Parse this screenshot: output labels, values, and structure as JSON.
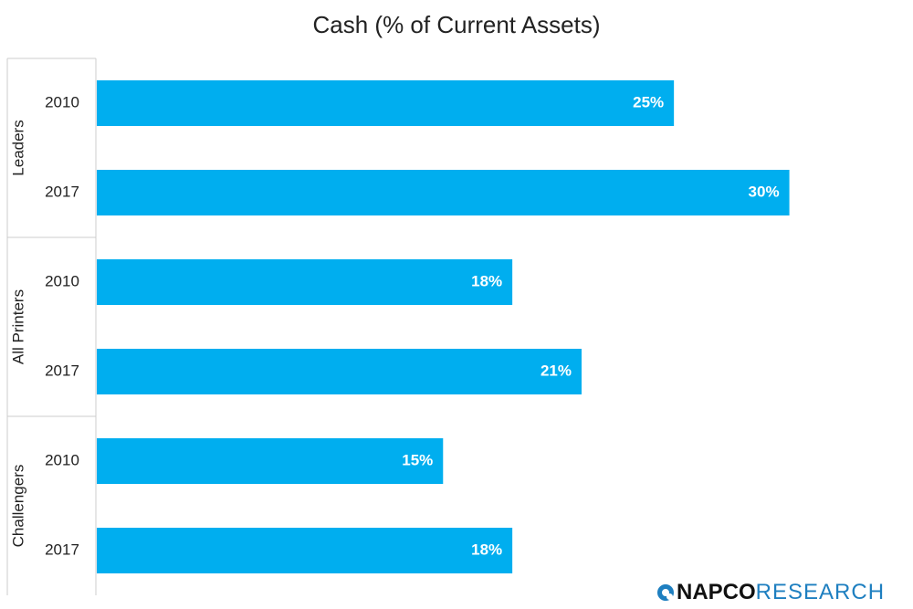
{
  "chart_data": {
    "type": "bar",
    "orientation": "horizontal",
    "title": "Cash (% of Current Assets)",
    "groups": [
      {
        "name": "Leaders",
        "bars": [
          {
            "label": "2010",
            "value": 25,
            "data_label": "25%"
          },
          {
            "label": "2017",
            "value": 30,
            "data_label": "30%"
          }
        ]
      },
      {
        "name": "All Printers",
        "bars": [
          {
            "label": "2010",
            "value": 18,
            "data_label": "18%"
          },
          {
            "label": "2017",
            "value": 21,
            "data_label": "21%"
          }
        ]
      },
      {
        "name": "Challengers",
        "bars": [
          {
            "label": "2010",
            "value": 15,
            "data_label": "15%"
          },
          {
            "label": "2017",
            "value": 18,
            "data_label": "18%"
          }
        ]
      }
    ],
    "value_unit": "%",
    "xlim": [
      0,
      35
    ],
    "grid": false,
    "legend": "none",
    "bar_color": "#00aeef",
    "data_label_color": "#ffffff"
  },
  "logo": {
    "part1": "NAPCO",
    "part2": "RESEARCH"
  },
  "colors": {
    "axis_line": "#cccccc",
    "logo_blue": "#1e7fc0"
  }
}
